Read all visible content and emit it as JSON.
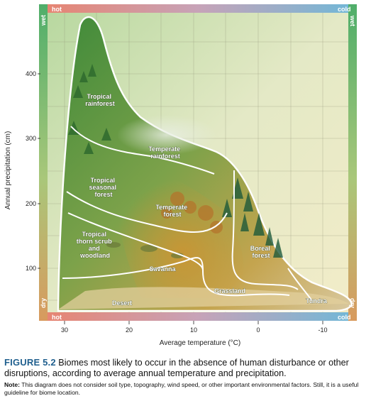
{
  "frame": {
    "top_left": "hot",
    "top_right": "cold",
    "bottom_left": "hot",
    "bottom_right": "cold",
    "left_top": "wet",
    "left_bottom": "dry",
    "right_top": "wet",
    "right_bottom": "dry"
  },
  "axes": {
    "xlabel": "Average temperature (°C)",
    "ylabel": "Annual precipitation (cm)",
    "x_ticks": [
      "30",
      "20",
      "10",
      "0",
      "-10"
    ],
    "y_ticks": [
      "400",
      "300",
      "200",
      "100"
    ]
  },
  "biomes": [
    {
      "id": "tropical-rainforest",
      "lines": [
        "Tropical",
        "rainforest"
      ]
    },
    {
      "id": "temperate-rainforest",
      "lines": [
        "Temperate",
        "rainforest"
      ]
    },
    {
      "id": "tropical-seasonal-forest",
      "lines": [
        "Tropical",
        "seasonal",
        "forest"
      ]
    },
    {
      "id": "temperate-forest",
      "lines": [
        "Temperate",
        "forest"
      ]
    },
    {
      "id": "tropical-thorn-scrub",
      "lines": [
        "Tropical",
        "thorn scrub",
        "and",
        "woodland"
      ]
    },
    {
      "id": "savanna",
      "lines": [
        "Savanna"
      ]
    },
    {
      "id": "boreal-forest",
      "lines": [
        "Boreal",
        "forest"
      ]
    },
    {
      "id": "grassland",
      "lines": [
        "Grassland"
      ]
    },
    {
      "id": "desert",
      "lines": [
        "Desert"
      ]
    },
    {
      "id": "tundra",
      "lines": [
        "Tundra"
      ]
    }
  ],
  "caption": {
    "figure_label": "FIGURE 5.2",
    "text": "Biomes most likely to occur in the absence of human disturbance or other disruptions, according to average annual temperature and precipitation.",
    "note_label": "Note:",
    "note_text": "This diagram does not consider soil type, topography, wind speed, or other important environmental factors. Still, it is a useful guideline for biome location."
  },
  "colors": {
    "hot": "#e8836f",
    "cold": "#6fb8d8",
    "wet": "#4fae6a",
    "dry": "#d89a5e",
    "figure_label": "#1f5f8e"
  }
}
